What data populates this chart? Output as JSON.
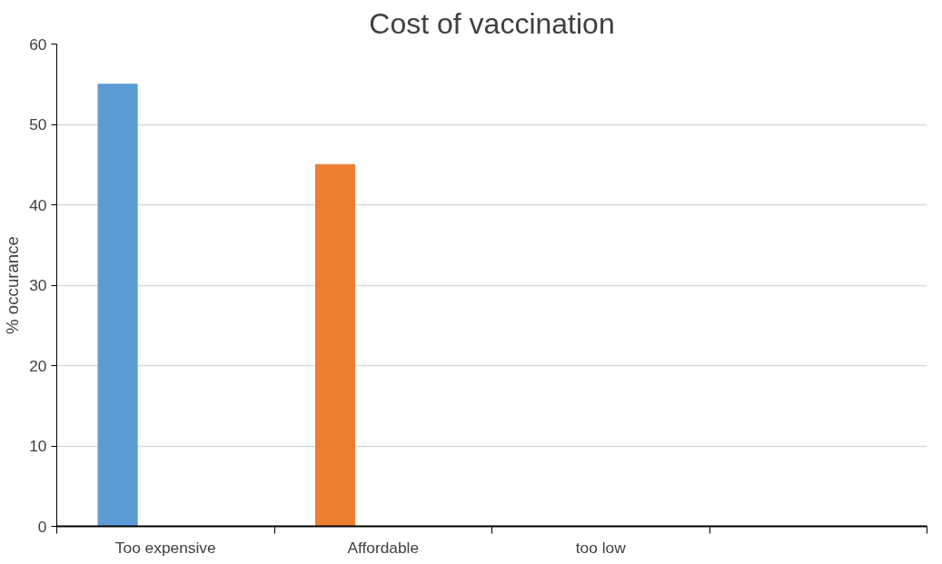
{
  "chart_data": {
    "type": "bar",
    "title": "Cost of vaccination",
    "ylabel": "% occurance",
    "categories": [
      "Too expensive",
      "Affordable",
      "too low",
      null
    ],
    "values": [
      55,
      45,
      0,
      null
    ],
    "colors": [
      "#5b9bd5",
      "#ed7d31",
      "#a5a5a5",
      "#ffc000"
    ],
    "ylim": [
      0,
      60
    ],
    "yticks": [
      0,
      10,
      20,
      30,
      40,
      50,
      60
    ],
    "grid": "y"
  }
}
